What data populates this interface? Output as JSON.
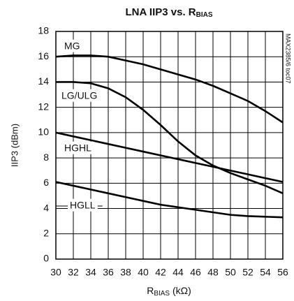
{
  "chart_data": {
    "type": "line",
    "title": {
      "main": "LNA IIP3 vs. R",
      "sub": "BIAS"
    },
    "x_label": {
      "main": "R",
      "sub": "BIAS",
      "unit": " (kΩ)"
    },
    "y_label": "IIP3 (dBm)",
    "annotation": "MAX2385/6 toc07",
    "x": [
      30,
      32,
      34,
      36,
      38,
      40,
      42,
      44,
      46,
      48,
      50,
      52,
      54,
      56
    ],
    "series": [
      {
        "name": "MG",
        "color": "#000000",
        "values": [
          16.0,
          16.1,
          16.1,
          16.0,
          15.7,
          15.4,
          15.0,
          14.6,
          14.2,
          13.7,
          13.1,
          12.5,
          11.7,
          10.8
        ]
      },
      {
        "name": "LG/ULG",
        "color": "#000000",
        "values": [
          14.0,
          14.0,
          13.9,
          13.5,
          12.8,
          11.8,
          10.6,
          9.3,
          8.2,
          7.4,
          6.8,
          6.3,
          5.8,
          5.2
        ]
      },
      {
        "name": "HGHL",
        "color": "#000000",
        "values": [
          10.0,
          9.7,
          9.4,
          9.1,
          8.8,
          8.5,
          8.2,
          7.9,
          7.6,
          7.3,
          7.0,
          6.7,
          6.4,
          6.1
        ]
      },
      {
        "name": "HGLL",
        "color": "#000000",
        "values": [
          6.1,
          5.8,
          5.5,
          5.2,
          4.9,
          4.6,
          4.3,
          4.1,
          3.9,
          3.7,
          3.5,
          3.4,
          3.35,
          3.3
        ]
      }
    ],
    "xlim": [
      30,
      56
    ],
    "xticks": [
      30,
      32,
      34,
      36,
      38,
      40,
      42,
      44,
      46,
      48,
      50,
      52,
      54,
      56
    ],
    "ylim": [
      0,
      18
    ],
    "yticks": [
      0,
      2,
      4,
      6,
      8,
      10,
      12,
      14,
      16,
      18
    ],
    "grid": true
  }
}
